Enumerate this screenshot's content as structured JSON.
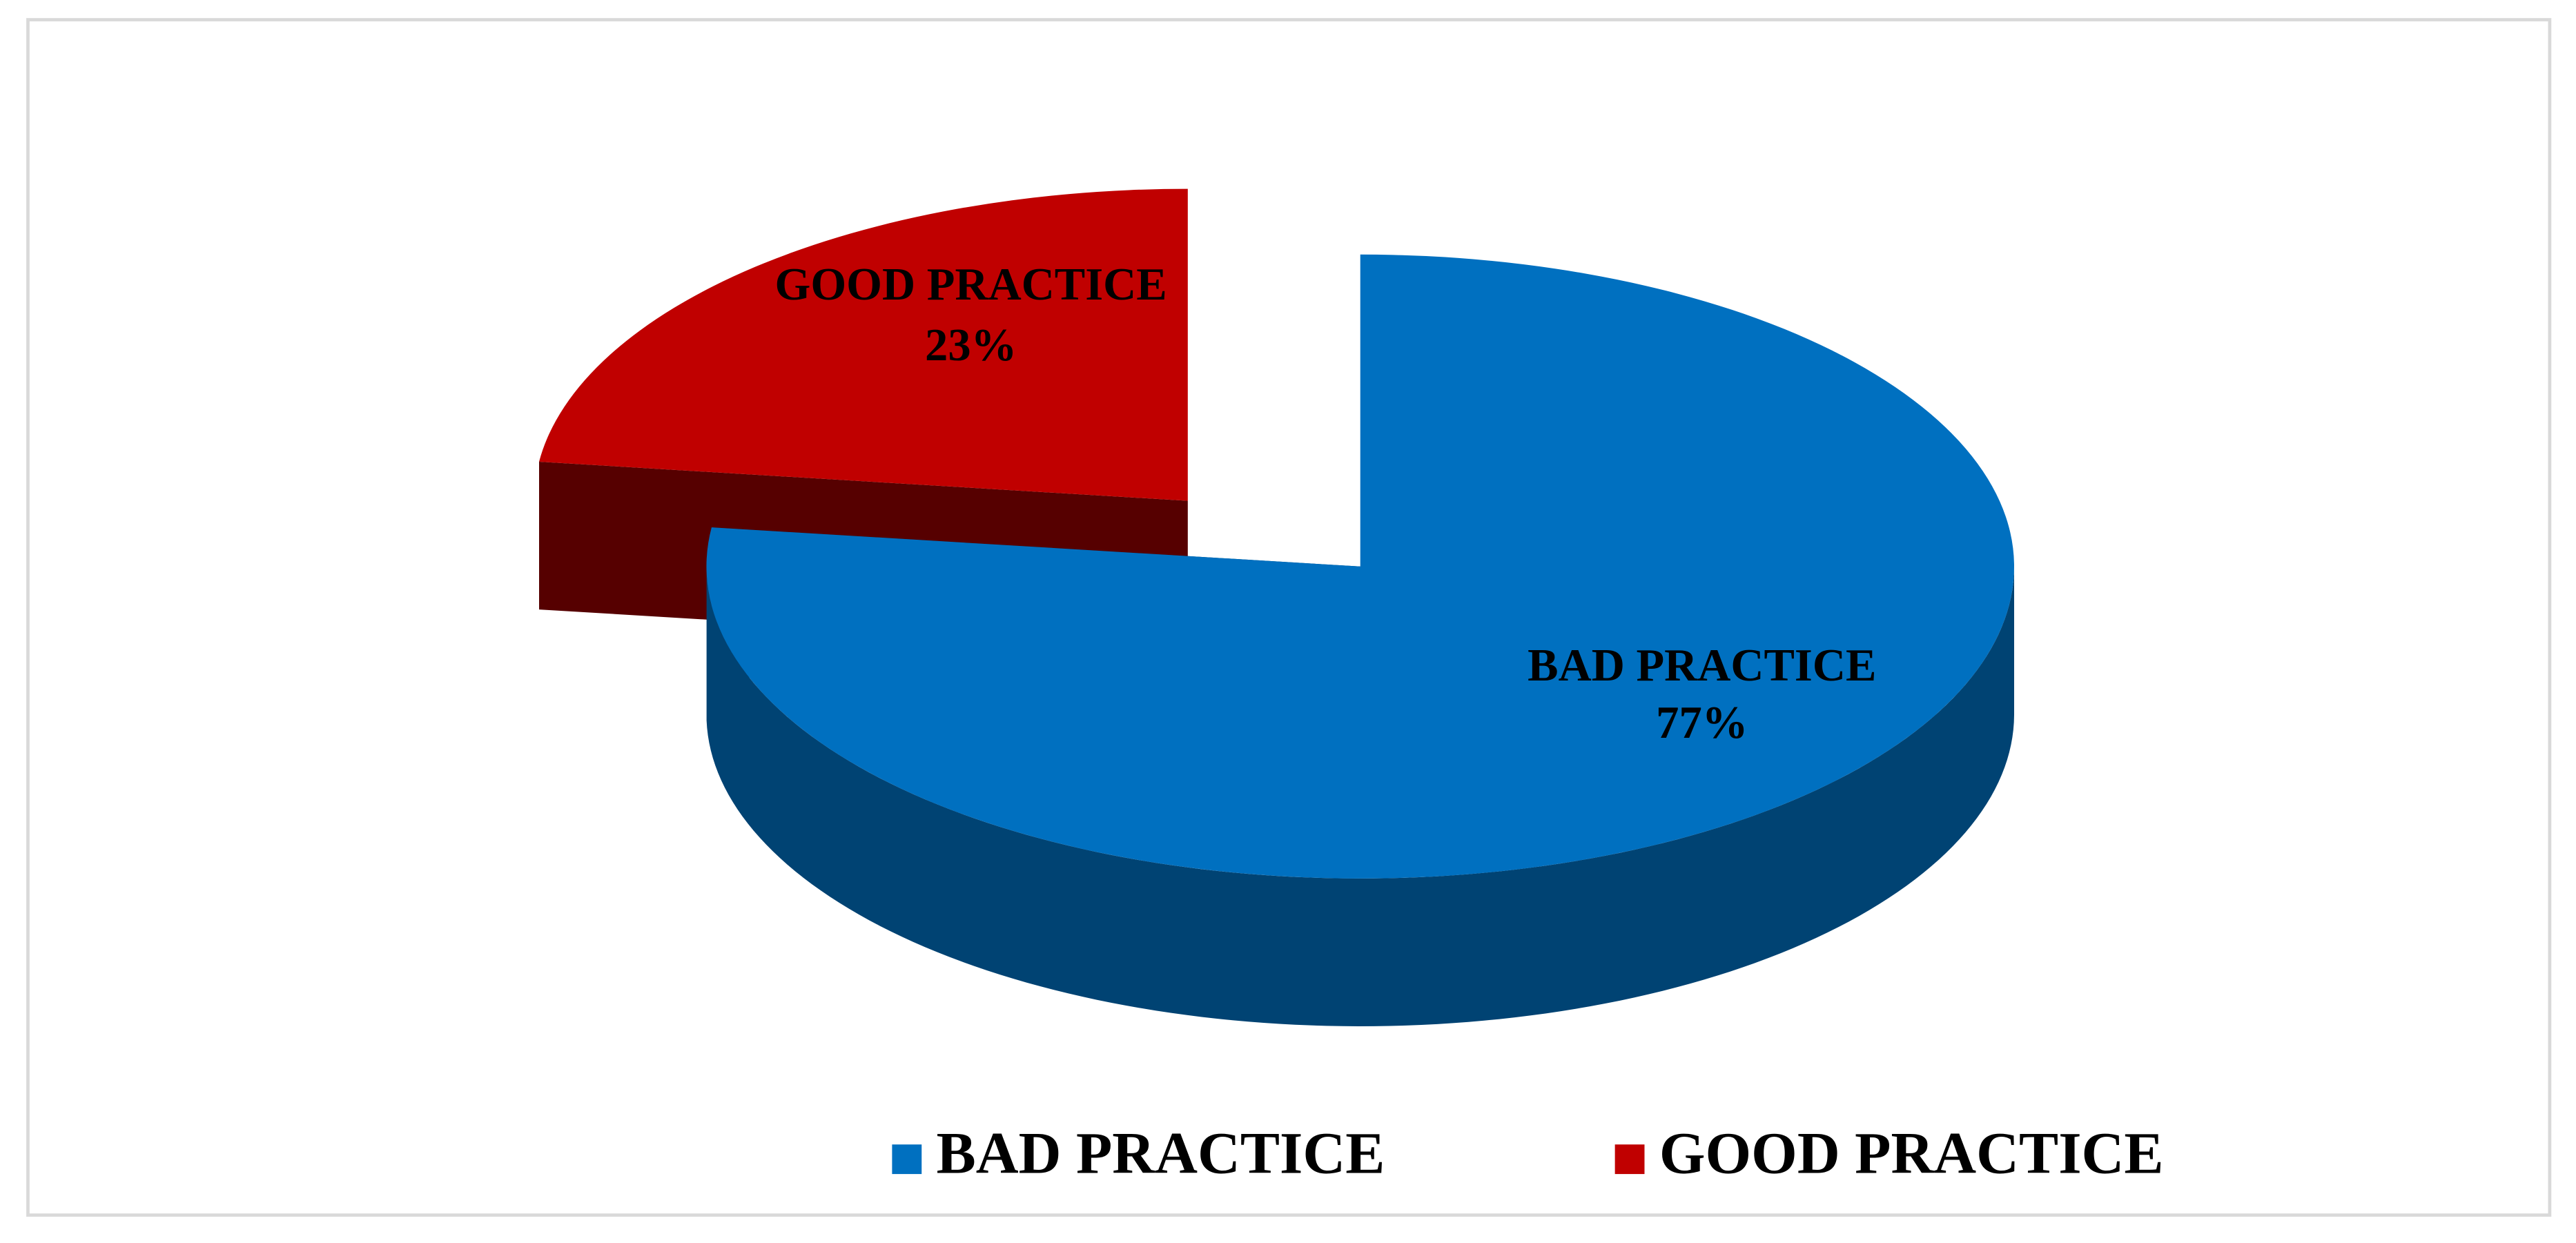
{
  "chart_data": {
    "type": "pie",
    "three_d": true,
    "categories": [
      "BAD PRACTICE",
      "GOOD PRACTICE"
    ],
    "values": [
      77,
      23
    ],
    "value_labels": [
      "77%",
      "23%"
    ],
    "colors": [
      "#0070c0",
      "#c00000"
    ],
    "legend": "bottom"
  }
}
